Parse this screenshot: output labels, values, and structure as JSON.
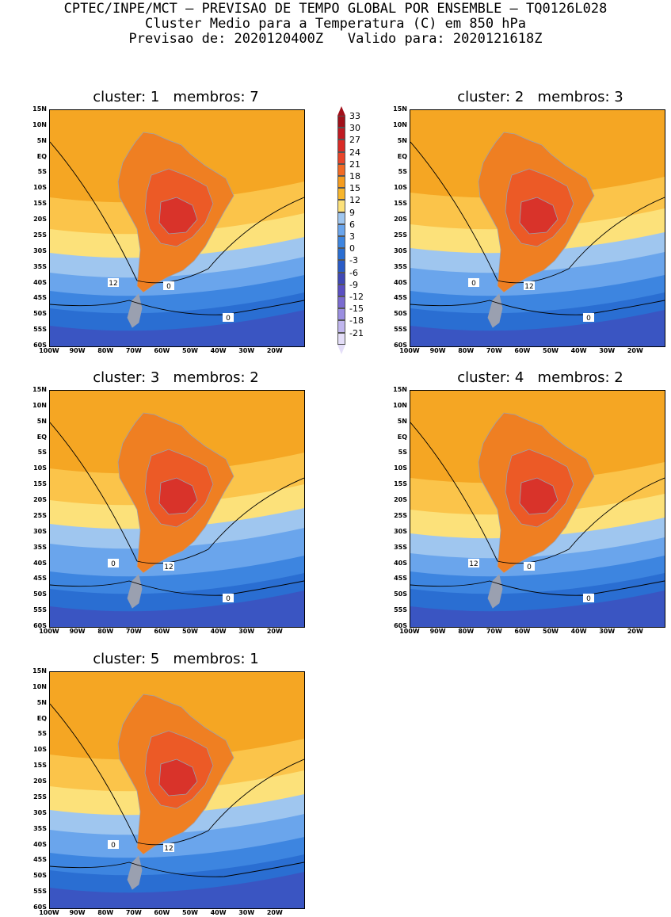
{
  "header": {
    "line1": "CPTEC/INPE/MCT — PREVISAO DE TEMPO GLOBAL POR ENSEMBLE — TQ0126L028",
    "line2": "Cluster Medio para a Temperatura (C) em 850 hPa",
    "line3": "Previsao de: 2020120400Z   Valido para: 2020121618Z"
  },
  "axes": {
    "lat_labels": [
      "15N",
      "10N",
      "5N",
      "EQ",
      "5S",
      "10S",
      "15S",
      "20S",
      "25S",
      "30S",
      "35S",
      "40S",
      "45S",
      "50S",
      "55S",
      "60S"
    ],
    "lon_labels": [
      "100W",
      "90W",
      "80W",
      "70W",
      "60W",
      "50W",
      "40W",
      "30W",
      "20W"
    ]
  },
  "colorbar": {
    "labels": [
      "33",
      "30",
      "27",
      "24",
      "21",
      "18",
      "15",
      "12",
      "9",
      "6",
      "3",
      "0",
      "-3",
      "-6",
      "-9",
      "-12",
      "-15",
      "-18",
      "-21"
    ],
    "colors": [
      "#a1101a",
      "#c01a22",
      "#d92b26",
      "#e8452a",
      "#f26a24",
      "#f59c1e",
      "#f7b52c",
      "#fce17a",
      "#9fc6ef",
      "#6aa5ec",
      "#3d85e0",
      "#2a6ed2",
      "#2a5bc6",
      "#4048b5",
      "#5a4fc2",
      "#7a6bd0",
      "#9a8ee0",
      "#c0b6ee",
      "#e4def8"
    ]
  },
  "clusters": [
    {
      "title": "cluster: 1   membros: 7",
      "labels": [
        "0",
        "12",
        "0"
      ]
    },
    {
      "title": "cluster: 2   membros: 3",
      "labels": [
        "12",
        "0",
        "0"
      ]
    },
    {
      "title": "cluster: 3   membros: 2",
      "labels": [
        "12",
        "0",
        "0"
      ]
    },
    {
      "title": "cluster: 4   membros: 2",
      "labels": [
        "0",
        "12",
        "0"
      ]
    },
    {
      "title": "cluster: 5   membros: 1",
      "labels": [
        "12",
        "0"
      ]
    }
  ]
}
